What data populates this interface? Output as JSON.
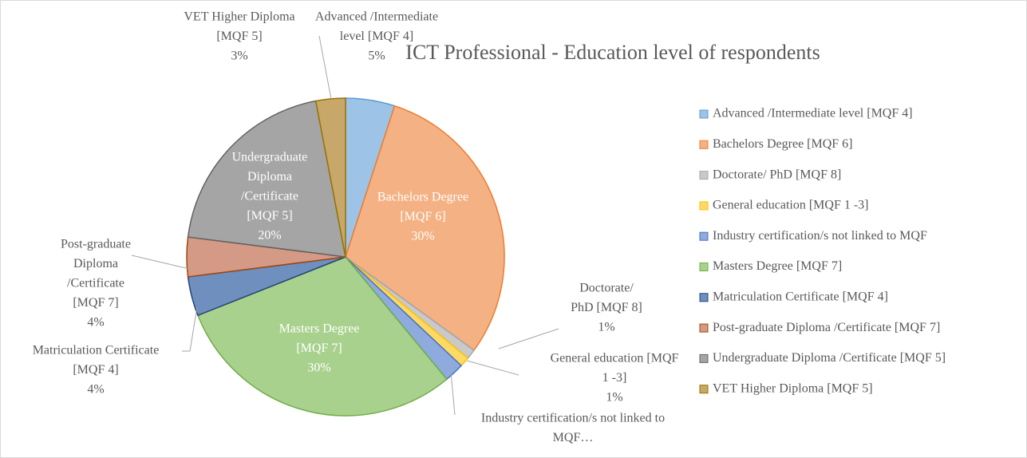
{
  "chart_data": {
    "type": "pie",
    "title": "ICT Professional - Education level of respondents",
    "categories": [
      "Advanced /Intermediate level [MQF 4]",
      "Bachelors Degree [MQF 6]",
      "Doctorate/ PhD [MQF 8]",
      "General education [MQF 1 -3]",
      "Industry certification/s not linked to MQF",
      "Masters  Degree [MQF 7]",
      "Matriculation Certificate [MQF 4]",
      "Post-graduate Diploma /Certificate [MQF 7]",
      "Undergraduate Diploma /Certificate [MQF 5]",
      "VET Higher Diploma [MQF 5]"
    ],
    "values": [
      5,
      30,
      1,
      1,
      2,
      30,
      4,
      4,
      20,
      3
    ],
    "value_labels": [
      "5%",
      "30%",
      "1%",
      "1%",
      null,
      "30%",
      "4%",
      "4%",
      "20%",
      "3%"
    ],
    "slice_labels": [
      [
        "Advanced /Intermediate",
        "level [MQF 4]"
      ],
      [
        "Bachelors Degree",
        "[MQF 6]"
      ],
      [
        "Doctorate/",
        "PhD [MQF 8]"
      ],
      [
        "General education [MQF",
        "1 -3]"
      ],
      [
        "Industry certification/s not linked to",
        "MQF…"
      ],
      [
        "Masters  Degree",
        "[MQF 7]"
      ],
      [
        "Matriculation Certificate",
        "[MQF 4]"
      ],
      [
        "Post-graduate",
        "Diploma",
        "/Certificate",
        "[MQF 7]"
      ],
      [
        "Undergraduate",
        "Diploma",
        "/Certificate",
        "[MQF 5]"
      ],
      [
        "VET Higher Diploma",
        "[MQF 5]"
      ]
    ],
    "colors": [
      "#9dc3e6",
      "#f4b183",
      "#c9c9c9",
      "#ffd966",
      "#8faadc",
      "#a9d18e",
      "#6f8fbf",
      "#d49a86",
      "#a5a5a5",
      "#c7a86a"
    ],
    "legend": "right"
  }
}
